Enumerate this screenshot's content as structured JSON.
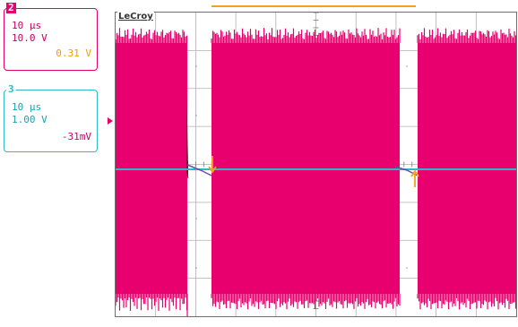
{
  "brand": "LeCroy",
  "channels": [
    {
      "id": "2",
      "timebase": "10 μs",
      "volts_div": "10.0 V",
      "offset": "0.31 V",
      "color": "#e8006e",
      "offset_color": "#f0a000"
    },
    {
      "id": "3",
      "timebase": "10 μs",
      "volts_div": "1.00 V",
      "offset": "-31mV",
      "color": "#2fb8c8",
      "offset_color": "#c80060"
    }
  ],
  "colors": {
    "trace_ch2": "#e8006e",
    "trace_ch3": "#2fb8c8",
    "cursor": "#f4a21a",
    "grid": "#b0b0b0",
    "graticule_dots": "#9a9a9a"
  },
  "display": {
    "grid_divisions_x": 10,
    "grid_divisions_y": 8
  }
}
